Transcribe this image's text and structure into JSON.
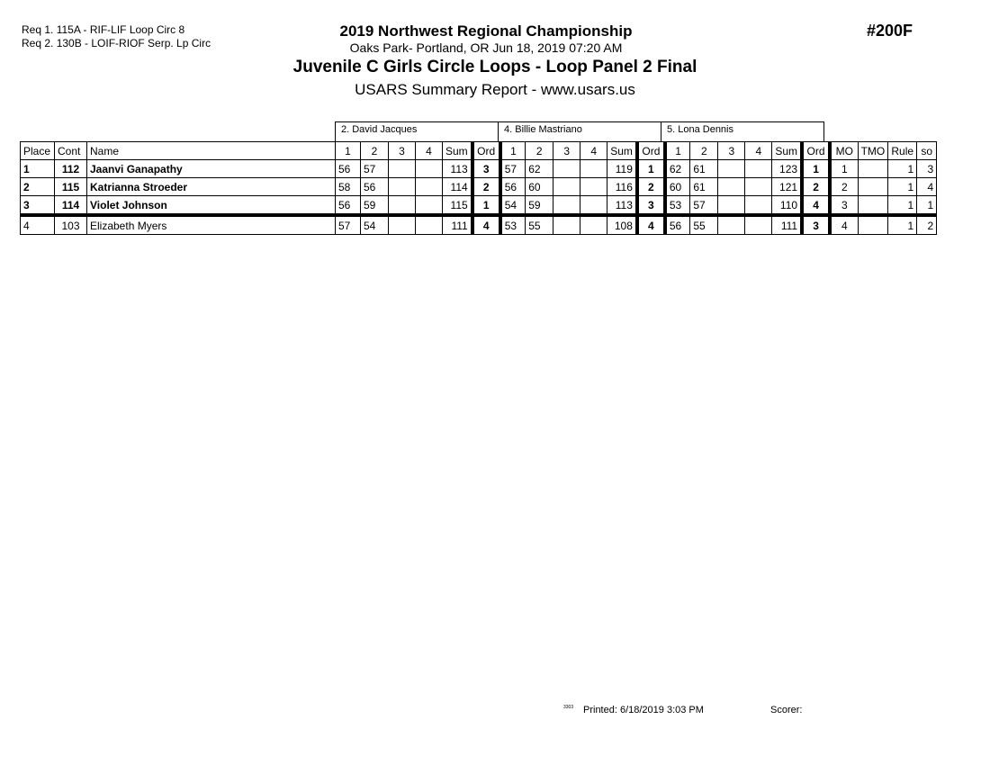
{
  "requirements": [
    "Req  1.  115A - RIF-LIF Loop Circ 8",
    "Req  2.  130B - LOIF-RIOF Serp. Lp Circ"
  ],
  "header": {
    "championship": "2019 Northwest Regional Championship",
    "location": "Oaks Park- Portland, OR  Jun 18, 2019  07:20 AM",
    "event": "Juvenile C Girls Circle Loops - Loop Panel 2 Final",
    "report": "USARS Summary Report - www.usars.us",
    "event_number": "#200F"
  },
  "judges": [
    "2.  David Jacques",
    "4.  Billie Mastriano",
    "5.  Lona  Dennis"
  ],
  "columns": {
    "place": "Place",
    "cont": "Cont",
    "name": "Name",
    "marks": [
      "1",
      "2",
      "3",
      "4"
    ],
    "sum": "Sum",
    "ord": "Ord",
    "mo": "MO",
    "tmo": "TMO",
    "rule": "Rule",
    "so": "so"
  },
  "rows": [
    {
      "place": "1",
      "cont": "112",
      "name": "Jaanvi Ganapathy",
      "bold": true,
      "judges": [
        {
          "m": [
            "56",
            "57",
            "",
            ""
          ],
          "sum": "113",
          "ord": "3"
        },
        {
          "m": [
            "57",
            "62",
            "",
            ""
          ],
          "sum": "119",
          "ord": "1"
        },
        {
          "m": [
            "62",
            "61",
            "",
            ""
          ],
          "sum": "123",
          "ord": "1"
        }
      ],
      "mo": "1",
      "tmo": "",
      "rule": "1",
      "so": "3"
    },
    {
      "place": "2",
      "cont": "115",
      "name": "Katrianna Stroeder",
      "bold": true,
      "judges": [
        {
          "m": [
            "58",
            "56",
            "",
            ""
          ],
          "sum": "114",
          "ord": "2"
        },
        {
          "m": [
            "56",
            "60",
            "",
            ""
          ],
          "sum": "116",
          "ord": "2"
        },
        {
          "m": [
            "60",
            "61",
            "",
            ""
          ],
          "sum": "121",
          "ord": "2"
        }
      ],
      "mo": "2",
      "tmo": "",
      "rule": "1",
      "so": "4"
    },
    {
      "place": "3",
      "cont": "114",
      "name": "Violet Johnson",
      "bold": true,
      "judges": [
        {
          "m": [
            "56",
            "59",
            "",
            ""
          ],
          "sum": "115",
          "ord": "1"
        },
        {
          "m": [
            "54",
            "59",
            "",
            ""
          ],
          "sum": "113",
          "ord": "3"
        },
        {
          "m": [
            "53",
            "57",
            "",
            ""
          ],
          "sum": "110",
          "ord": "4"
        }
      ],
      "mo": "3",
      "tmo": "",
      "rule": "1",
      "so": "1"
    },
    {
      "place": "4",
      "cont": "103",
      "name": "Elizabeth Myers",
      "bold": false,
      "judges": [
        {
          "m": [
            "57",
            "54",
            "",
            ""
          ],
          "sum": "111",
          "ord": "4"
        },
        {
          "m": [
            "53",
            "55",
            "",
            ""
          ],
          "sum": "108",
          "ord": "4"
        },
        {
          "m": [
            "56",
            "55",
            "",
            ""
          ],
          "sum": "111",
          "ord": "3"
        }
      ],
      "mo": "4",
      "tmo": "",
      "rule": "1",
      "so": "2"
    }
  ],
  "footer": {
    "code": "3303",
    "printed": "Printed:  6/18/2019  3:03 PM",
    "scorer": "Scorer:"
  }
}
